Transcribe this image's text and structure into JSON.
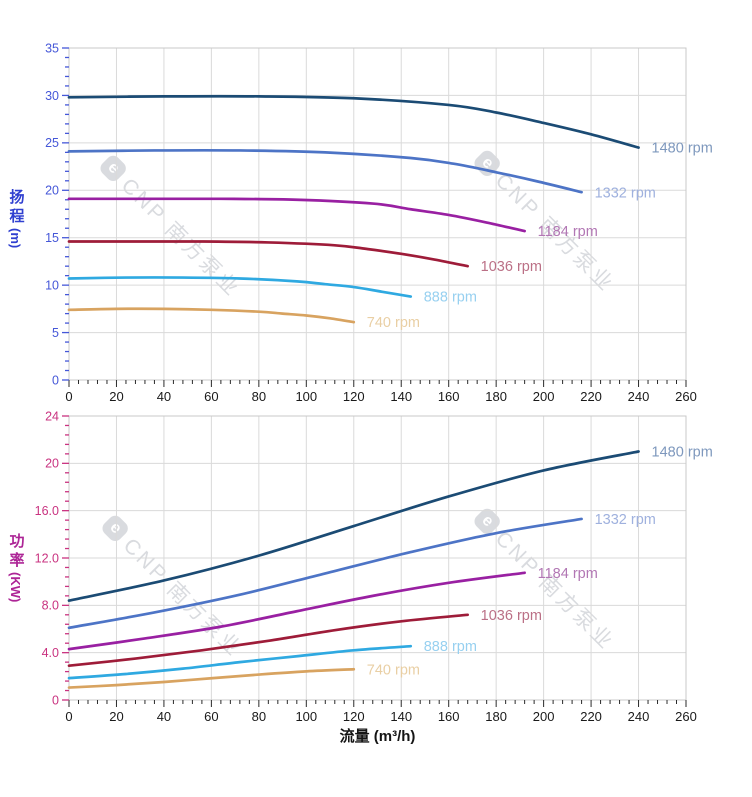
{
  "watermark": {
    "logo_letter": "e",
    "text": "CNP 南方泵业"
  },
  "chart_data": [
    {
      "type": "line",
      "id": "head-chart",
      "title": "",
      "xlabel": "",
      "ylabel": "扬程",
      "ylabel_unit": "(m)",
      "xlim": [
        0,
        260
      ],
      "ylim": [
        0,
        35
      ],
      "x_tick_step": 20,
      "x_minor_step": 4,
      "y_tick_step": 5,
      "y_minor_step": 1,
      "x_tick_labels": [
        "0",
        "20",
        "40",
        "60",
        "80",
        "100",
        "120",
        "140",
        "160",
        "180",
        "200",
        "220",
        "240",
        "260"
      ],
      "y_tick_labels": [
        "0",
        "5",
        "10",
        "15",
        "20",
        "25",
        "30",
        "35"
      ],
      "grid": true,
      "legend_position": "end-of-curve labels",
      "axis_color": "#4557d8",
      "axis_title_color": "#3040d0",
      "x_tick_color": "#2a2a2a",
      "x_label_color": "#1a1a1a",
      "series": [
        {
          "name": "1480 rpm",
          "color": "#1b4b74",
          "label_color": "#7e98bd",
          "points": [
            [
              0,
              29.8
            ],
            [
              40,
              29.9
            ],
            [
              80,
              29.9
            ],
            [
              120,
              29.7
            ],
            [
              160,
              29.0
            ],
            [
              180,
              28.2
            ],
            [
              200,
              27.1
            ],
            [
              220,
              25.9
            ],
            [
              240,
              24.5
            ]
          ]
        },
        {
          "name": "1332 rpm",
          "color": "#4d74c6",
          "label_color": "#9fb1de",
          "points": [
            [
              0,
              24.1
            ],
            [
              36,
              24.2
            ],
            [
              72,
              24.2
            ],
            [
              108,
              24.0
            ],
            [
              144,
              23.4
            ],
            [
              162,
              22.8
            ],
            [
              180,
              21.9
            ],
            [
              198,
              20.9
            ],
            [
              216,
              19.8
            ]
          ]
        },
        {
          "name": "1184 rpm",
          "color": "#9920a2",
          "label_color": "#b277b4",
          "points": [
            [
              0,
              19.1
            ],
            [
              32,
              19.1
            ],
            [
              64,
              19.1
            ],
            [
              96,
              19.0
            ],
            [
              128,
              18.6
            ],
            [
              144,
              18.0
            ],
            [
              160,
              17.4
            ],
            [
              176,
              16.6
            ],
            [
              192,
              15.7
            ]
          ]
        },
        {
          "name": "1036 rpm",
          "color": "#9e1c39",
          "label_color": "#bb7086",
          "points": [
            [
              0,
              14.6
            ],
            [
              28,
              14.6
            ],
            [
              56,
              14.6
            ],
            [
              84,
              14.5
            ],
            [
              112,
              14.2
            ],
            [
              126,
              13.8
            ],
            [
              140,
              13.3
            ],
            [
              154,
              12.7
            ],
            [
              168,
              12.0
            ]
          ]
        },
        {
          "name": "888 rpm",
          "color": "#2fa9e1",
          "label_color": "#97d0f0",
          "points": [
            [
              0,
              10.7
            ],
            [
              24,
              10.8
            ],
            [
              48,
              10.8
            ],
            [
              72,
              10.7
            ],
            [
              96,
              10.4
            ],
            [
              108,
              10.1
            ],
            [
              120,
              9.8
            ],
            [
              132,
              9.3
            ],
            [
              144,
              8.8
            ]
          ]
        },
        {
          "name": "740 rpm",
          "color": "#d8a360",
          "label_color": "#e9cfa4",
          "points": [
            [
              0,
              7.4
            ],
            [
              20,
              7.5
            ],
            [
              40,
              7.5
            ],
            [
              60,
              7.4
            ],
            [
              80,
              7.2
            ],
            [
              90,
              7.0
            ],
            [
              100,
              6.8
            ],
            [
              110,
              6.5
            ],
            [
              120,
              6.1
            ]
          ]
        }
      ]
    },
    {
      "type": "line",
      "id": "power-chart",
      "title": "",
      "xlabel": "流量 (m³/h)",
      "ylabel": "功率",
      "ylabel_unit": "(KW)",
      "xlim": [
        0,
        260
      ],
      "ylim": [
        0,
        24
      ],
      "x_tick_step": 20,
      "x_minor_step": 4,
      "y_tick_step": 4,
      "y_minor_step": 0.8,
      "x_tick_labels": [
        "0",
        "20",
        "40",
        "60",
        "80",
        "100",
        "120",
        "140",
        "160",
        "180",
        "200",
        "220",
        "240",
        "260"
      ],
      "y_tick_labels": [
        "0",
        "4.0",
        "8.0",
        "12.0",
        "16.0",
        "20",
        "24"
      ],
      "grid": true,
      "legend_position": "end-of-curve labels",
      "axis_color": "#c93380",
      "axis_title_color": "#ad2596",
      "x_tick_color": "#2a2a2a",
      "x_label_color": "#1a1a1a",
      "series": [
        {
          "name": "1480 rpm",
          "color": "#1b4b74",
          "label_color": "#7e98bd",
          "points": [
            [
              0,
              8.4
            ],
            [
              40,
              10.1
            ],
            [
              80,
              12.2
            ],
            [
              120,
              14.7
            ],
            [
              160,
              17.2
            ],
            [
              200,
              19.4
            ],
            [
              240,
              21.0
            ]
          ]
        },
        {
          "name": "1332 rpm",
          "color": "#4d74c6",
          "label_color": "#9fb1de",
          "points": [
            [
              0,
              6.1
            ],
            [
              36,
              7.4
            ],
            [
              72,
              8.9
            ],
            [
              108,
              10.7
            ],
            [
              144,
              12.5
            ],
            [
              180,
              14.1
            ],
            [
              216,
              15.3
            ]
          ]
        },
        {
          "name": "1184 rpm",
          "color": "#9920a2",
          "label_color": "#b277b4",
          "points": [
            [
              0,
              4.3
            ],
            [
              32,
              5.2
            ],
            [
              64,
              6.2
            ],
            [
              96,
              7.5
            ],
            [
              128,
              8.8
            ],
            [
              160,
              9.9
            ],
            [
              192,
              10.75
            ]
          ]
        },
        {
          "name": "1036 rpm",
          "color": "#9e1c39",
          "label_color": "#bb7086",
          "points": [
            [
              0,
              2.9
            ],
            [
              28,
              3.5
            ],
            [
              56,
              4.2
            ],
            [
              84,
              5.0
            ],
            [
              112,
              5.9
            ],
            [
              140,
              6.65
            ],
            [
              168,
              7.2
            ]
          ]
        },
        {
          "name": "888 rpm",
          "color": "#2fa9e1",
          "label_color": "#97d0f0",
          "points": [
            [
              0,
              1.85
            ],
            [
              24,
              2.2
            ],
            [
              48,
              2.65
            ],
            [
              72,
              3.2
            ],
            [
              96,
              3.7
            ],
            [
              120,
              4.2
            ],
            [
              144,
              4.55
            ]
          ]
        },
        {
          "name": "740 rpm",
          "color": "#d8a360",
          "label_color": "#e9cfa4",
          "points": [
            [
              0,
              1.05
            ],
            [
              20,
              1.26
            ],
            [
              40,
              1.52
            ],
            [
              60,
              1.84
            ],
            [
              80,
              2.15
            ],
            [
              100,
              2.42
            ],
            [
              120,
              2.6
            ]
          ]
        }
      ]
    }
  ],
  "style": {
    "grid_color": "#dadada",
    "border_color": "#c9c9c9",
    "background": "#ffffff"
  }
}
